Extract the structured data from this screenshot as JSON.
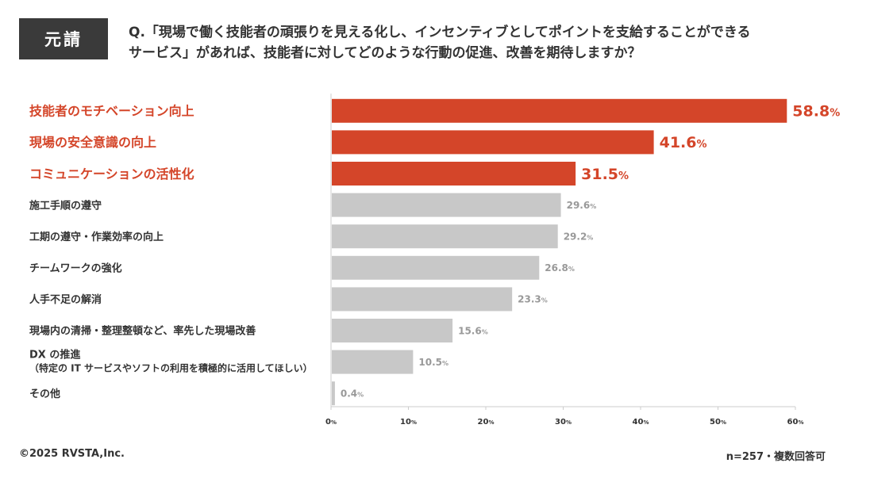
{
  "badge": "元請",
  "question": {
    "line1": "Q.「現場で働く技能者の頑張りを見える化し、インセンティブとしてポイントを支給することができる",
    "line2": "サービス」があれば、技能者に対してどのような行動の促進、改善を期待しますか？"
  },
  "chart_data": {
    "type": "bar",
    "orientation": "horizontal",
    "categories": [
      [
        "技能者のモチベーション向上"
      ],
      [
        "現場の安全意識の向上"
      ],
      [
        "コミュニケーションの活性化"
      ],
      [
        "施工手順の遵守"
      ],
      [
        "工期の遵守・作業効率の向上"
      ],
      [
        "チームワークの強化"
      ],
      [
        "人手不足の解消"
      ],
      [
        "現場内の清掃・整理整頓など、率先した現場改善"
      ],
      [
        "DX の推進",
        "（特定の IT サービスやソフトの利用を積極的に活用してほしい）"
      ],
      [
        "その他"
      ]
    ],
    "values": [
      58.8,
      41.6,
      31.5,
      29.6,
      29.2,
      26.8,
      23.3,
      15.6,
      10.5,
      0.4
    ],
    "value_suffix": "%",
    "highlight_top": 3,
    "xlim": [
      0,
      60
    ],
    "ticks": [
      0,
      10,
      20,
      30,
      40,
      50,
      60
    ],
    "tick_suffix": "%",
    "colors": {
      "highlight": "#d44529",
      "normal": "#c8c8c8",
      "normal_label": "#999999",
      "axis": "#cccccc"
    }
  },
  "footer": {
    "copyright": "©2025 RVSTA,Inc.",
    "sample": "n=257・複数回答可"
  }
}
